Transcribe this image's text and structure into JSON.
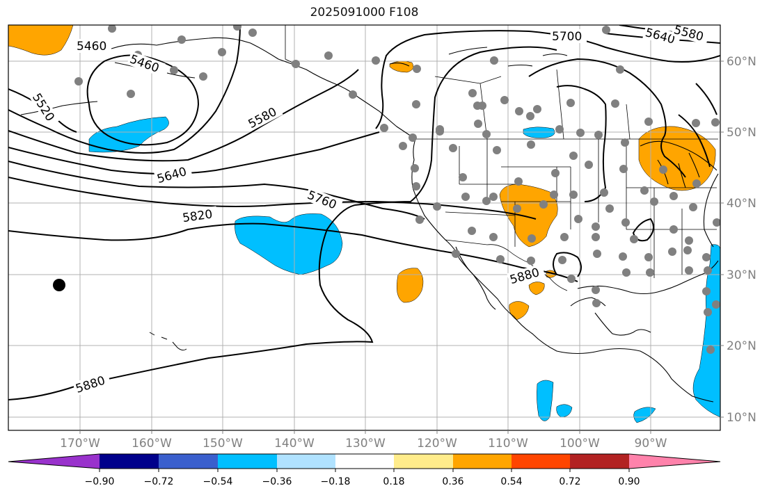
{
  "title": "2025091000 F108",
  "lon_ticks": [
    "170°W",
    "160°W",
    "150°W",
    "140°W",
    "130°W",
    "120°W",
    "110°W",
    "100°W",
    "90°W"
  ],
  "lat_ticks": [
    "60°N",
    "50°N",
    "40°N",
    "30°N",
    "20°N",
    "10°N"
  ],
  "contour_labels": [
    "5460",
    "5460",
    "5520",
    "5580",
    "5640",
    "5700",
    "5640",
    "5580",
    "5760",
    "5820",
    "5880",
    "5880"
  ],
  "colorbar": {
    "tick_labels": [
      "−0.90",
      "−0.72",
      "−0.54",
      "−0.36",
      "−0.18",
      "0.18",
      "0.36",
      "0.54",
      "0.72",
      "0.90"
    ],
    "colors": [
      "#9932cc",
      "#00008b",
      "#3a5fcd",
      "#00bfff",
      "#b0e2ff",
      "#ffffff",
      "#ffec8b",
      "#ffa500",
      "#ff4500",
      "#b22222",
      "#ff82ab"
    ]
  },
  "colors": {
    "positive_anomaly": "#ffa500",
    "negative_anomaly": "#00bfff",
    "station": "#808080",
    "contour": "#000000",
    "grid": "#b0b0b0"
  }
}
